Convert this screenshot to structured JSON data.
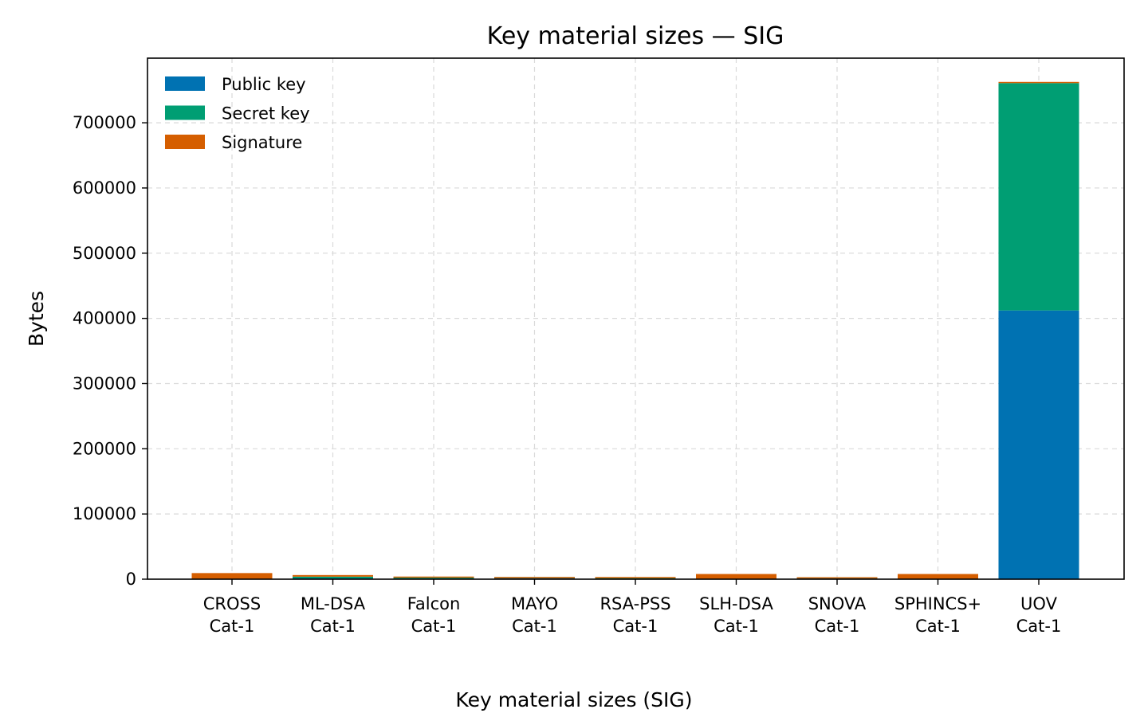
{
  "chart_data": {
    "type": "bar",
    "stacked": true,
    "title": "Key material sizes — SIG",
    "xlabel": "",
    "ylabel": "Bytes",
    "categories": [
      [
        "CROSS",
        "Cat-1"
      ],
      [
        "ML-DSA",
        "Cat-1"
      ],
      [
        "Falcon",
        "Cat-1"
      ],
      [
        "MAYO",
        "Cat-1"
      ],
      [
        "RSA-PSS",
        "Cat-1"
      ],
      [
        "SLH-DSA",
        "Cat-1"
      ],
      [
        "SNOVA",
        "Cat-1"
      ],
      [
        "SPHINCS+",
        "Cat-1"
      ],
      [
        "UOV",
        "Cat-1"
      ]
    ],
    "series": [
      {
        "name": "Public key",
        "color": "#0072b2",
        "values": [
          77,
          1312,
          897,
          1420,
          256,
          32,
          1016,
          32,
          412160
        ]
      },
      {
        "name": "Secret key",
        "color": "#009e73",
        "values": [
          32,
          2560,
          1281,
          24,
          1218,
          64,
          48,
          64,
          348704
        ]
      },
      {
        "name": "Signature",
        "color": "#d55e00",
        "values": [
          9236,
          2420,
          666,
          454,
          256,
          7856,
          248,
          7856,
          96
        ]
      }
    ],
    "ylim": [
      0,
      800000
    ],
    "yticks": [
      0,
      100000,
      200000,
      300000,
      400000,
      500000,
      600000,
      700000
    ],
    "grid": true,
    "legend_position": "top-left"
  },
  "caption": "Key material sizes (SIG)"
}
